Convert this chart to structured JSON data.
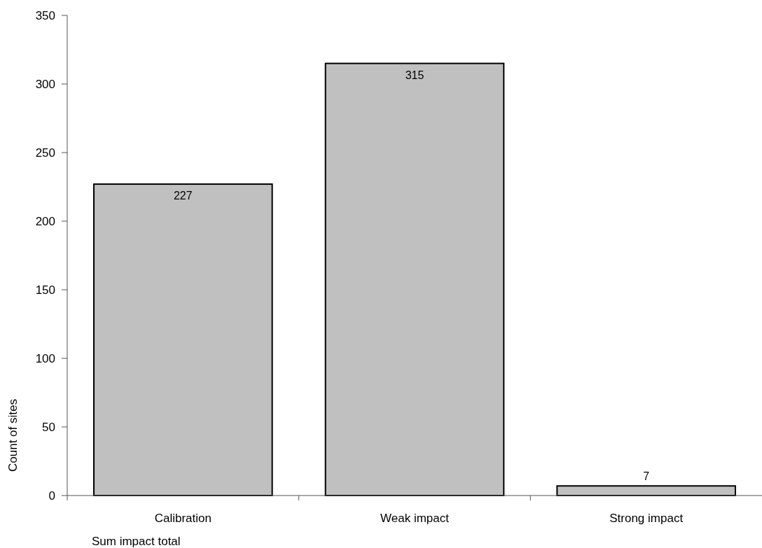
{
  "chart_data": {
    "type": "bar",
    "categories": [
      "Calibration",
      "Weak impact",
      "Strong impact"
    ],
    "values": [
      227,
      315,
      7
    ],
    "color": "#c0c0c0",
    "xlabel": "Sum impact total",
    "ylabel": "Count of sites",
    "ylim": [
      0,
      350
    ],
    "yticks": [
      0,
      50,
      100,
      150,
      200,
      250,
      300,
      350
    ],
    "data_labels": true
  }
}
